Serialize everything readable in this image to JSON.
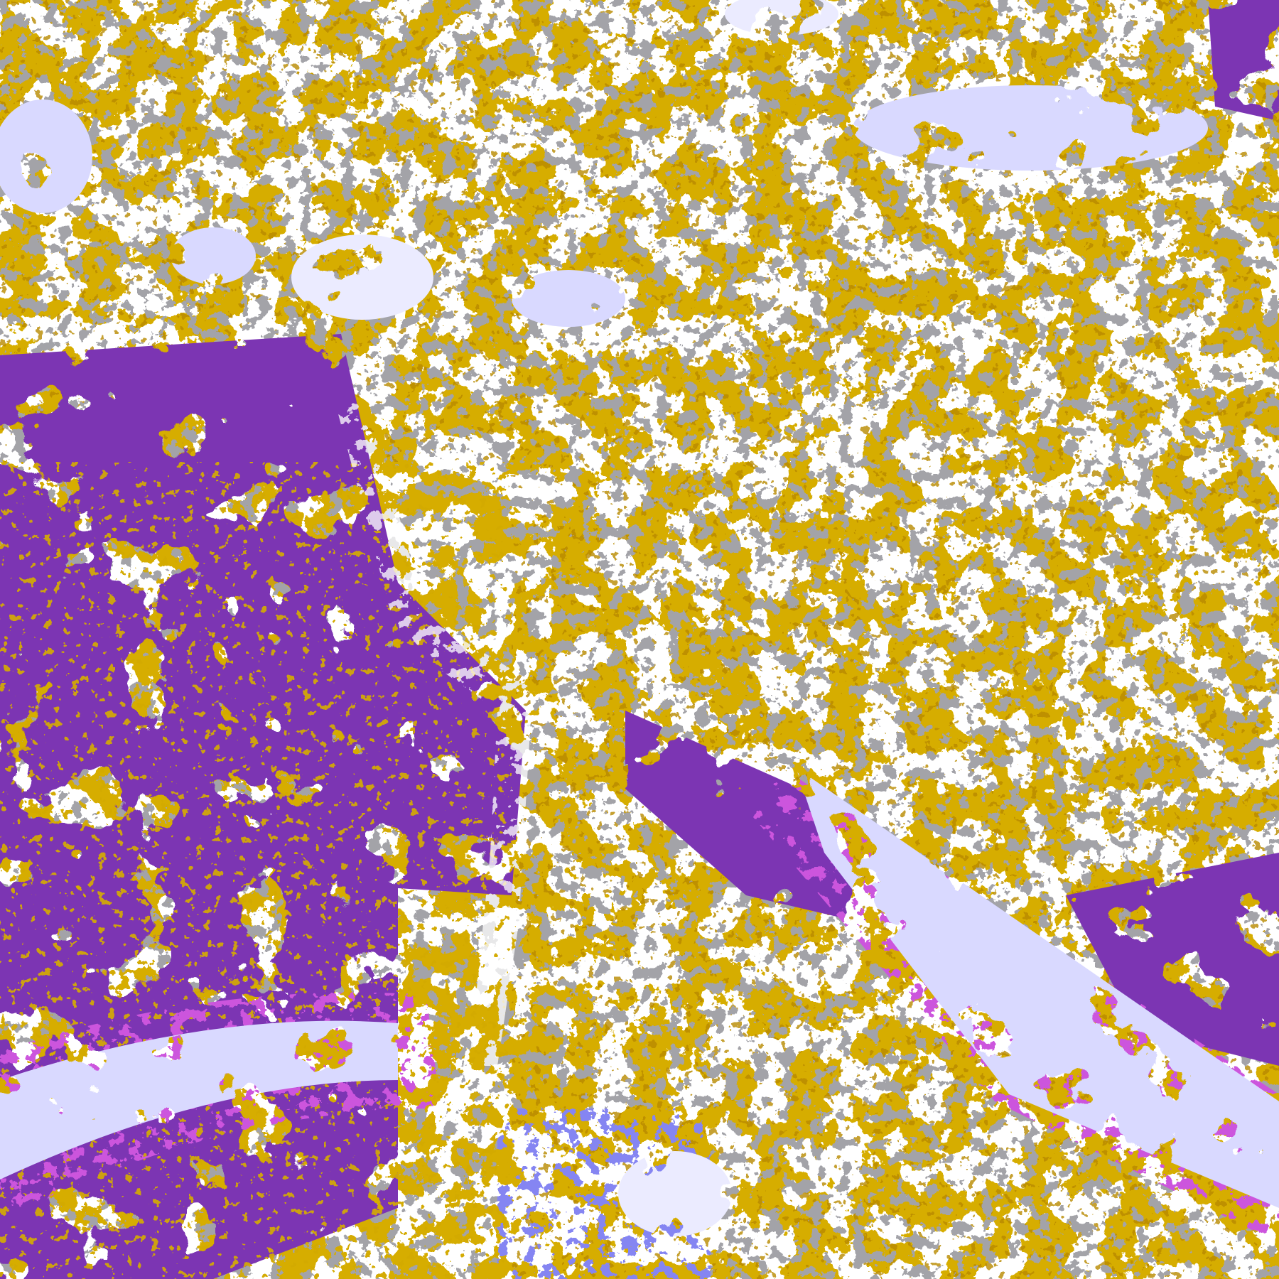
{
  "image": {
    "kind": "false-color satellite imagery",
    "palette": {
      "background": "#ffffff",
      "gold": "#d6ad00",
      "dark_gold": "#b98a00",
      "purple": "#7b34b3",
      "magenta": "#cc55dd",
      "grey": "#a3a3a8",
      "lavender": "#d9d9ff",
      "periwinkle": "#8585f2"
    }
  }
}
